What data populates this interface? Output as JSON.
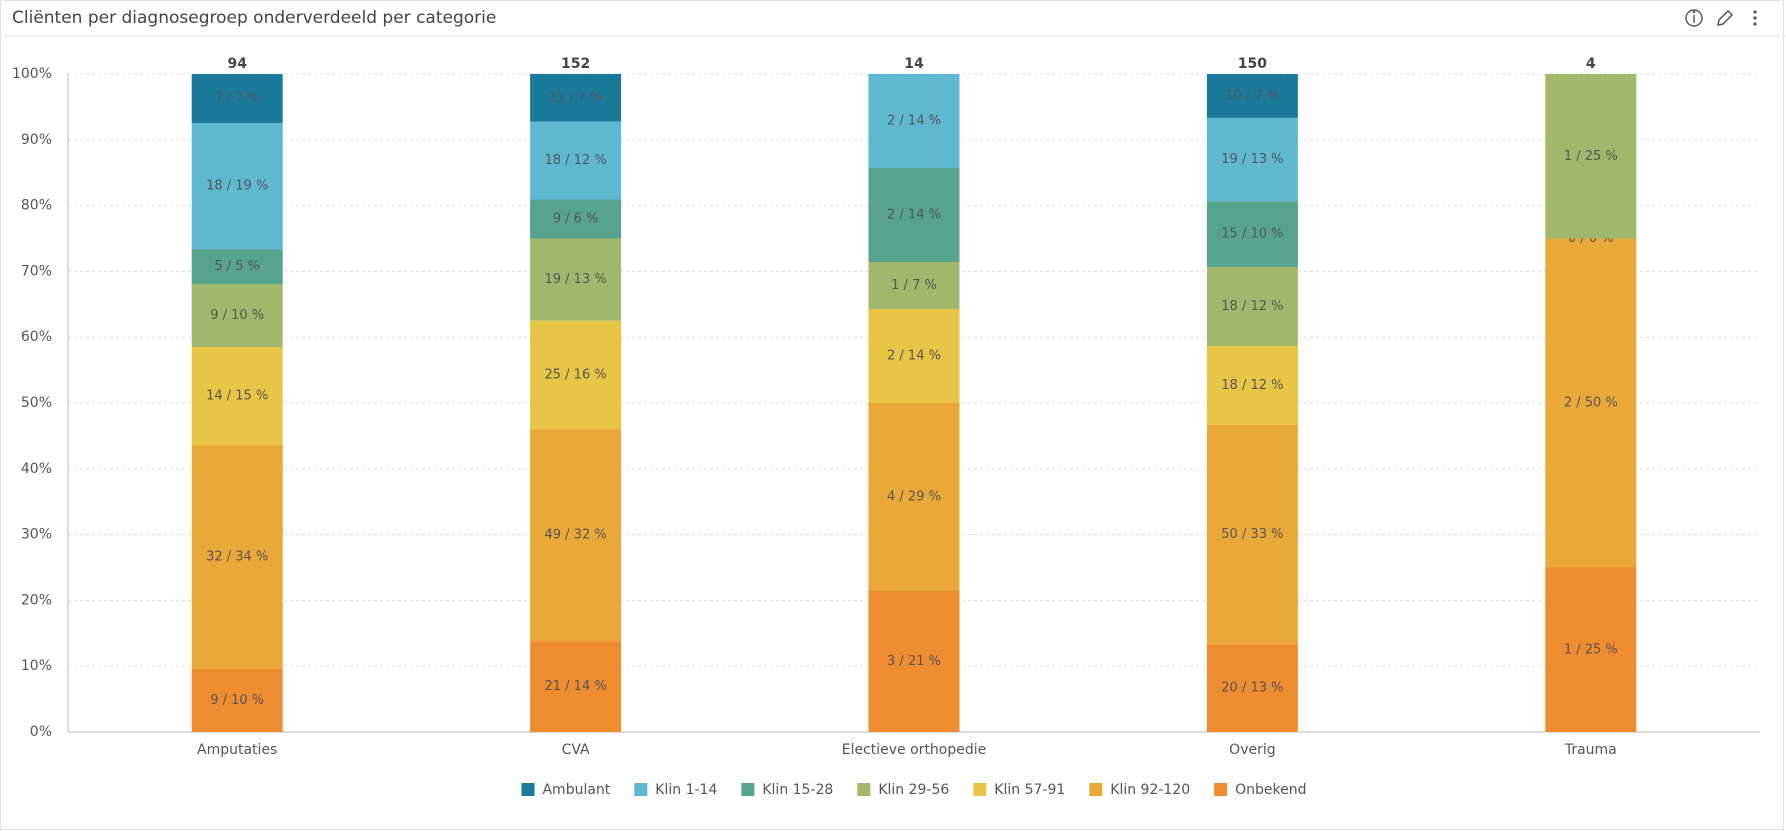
{
  "chart_data": {
    "type": "stacked_bar_100",
    "title": "Cliënten per diagnosegroep onderverdeeld per categorie",
    "categories": [
      "Amputaties",
      "CVA",
      "Electieve orthopedie",
      "Overig",
      "Trauma"
    ],
    "totals": [
      94,
      152,
      14,
      150,
      4
    ],
    "ylim": [
      0,
      100
    ],
    "yticks": [
      {
        "value": 0,
        "label": "0%"
      },
      {
        "value": 10,
        "label": "10%"
      },
      {
        "value": 20,
        "label": "20%"
      },
      {
        "value": 30,
        "label": "30%"
      },
      {
        "value": 40,
        "label": "40%"
      },
      {
        "value": 50,
        "label": "50%"
      },
      {
        "value": 60,
        "label": "60%"
      },
      {
        "value": 70,
        "label": "70%"
      },
      {
        "value": 80,
        "label": "80%"
      },
      {
        "value": 90,
        "label": "90%"
      },
      {
        "value": 100,
        "label": "100%"
      }
    ],
    "grid": true,
    "legend": "bottom",
    "series": [
      {
        "name": "Onbekend",
        "color": "#ef8c30",
        "values": [
          9.57,
          13.82,
          21.43,
          13.33,
          25
        ],
        "value_labels": [
          "9 / 10 %",
          "21 / 14 %",
          "3 / 21 %",
          "20 / 13 %",
          "1 / 25 %"
        ]
      },
      {
        "name": "Klin 92-120",
        "color": "#e9a838",
        "values": [
          34.04,
          32.24,
          28.57,
          33.33,
          50
        ],
        "value_labels": [
          "32 / 34 %",
          "49 / 32 %",
          "4 / 29 %",
          "50 / 33 %",
          "2 / 50 %"
        ]
      },
      {
        "name": "Klin 57-91",
        "color": "#e8c545",
        "values": [
          14.89,
          16.45,
          14.29,
          12,
          0
        ],
        "value_labels": [
          "14 / 15 %",
          "25 / 16 %",
          "2 / 14 %",
          "18 / 12 %",
          "0 / 0 %"
        ]
      },
      {
        "name": "Klin 29-56",
        "color": "#a0b86b",
        "values": [
          9.57,
          12.5,
          7.14,
          12,
          25
        ],
        "value_labels": [
          "9 / 10 %",
          "19 / 13 %",
          "1 / 7 %",
          "18 / 12 %",
          "1 / 25 %"
        ]
      },
      {
        "name": "Klin 15-28",
        "color": "#56a38e",
        "values": [
          5.32,
          5.92,
          14.29,
          10,
          0
        ],
        "value_labels": [
          "5 / 5 %",
          "9 / 6 %",
          "2 / 14 %",
          "15 / 10 %",
          null
        ]
      },
      {
        "name": "Klin 1-14",
        "color": "#5eb8cf",
        "values": [
          19.15,
          11.84,
          14.29,
          12.67,
          0
        ],
        "value_labels": [
          "18 / 19 %",
          "18 / 12 %",
          "2 / 14 %",
          "19 / 13 %",
          null
        ]
      },
      {
        "name": "Ambulant",
        "color": "#1a7a9c",
        "values": [
          7.45,
          7.24,
          0,
          6.67,
          0
        ],
        "value_labels": [
          "7 / 7 %",
          "11 / 7 %",
          null,
          "10 / 7 %",
          null
        ]
      }
    ]
  }
}
